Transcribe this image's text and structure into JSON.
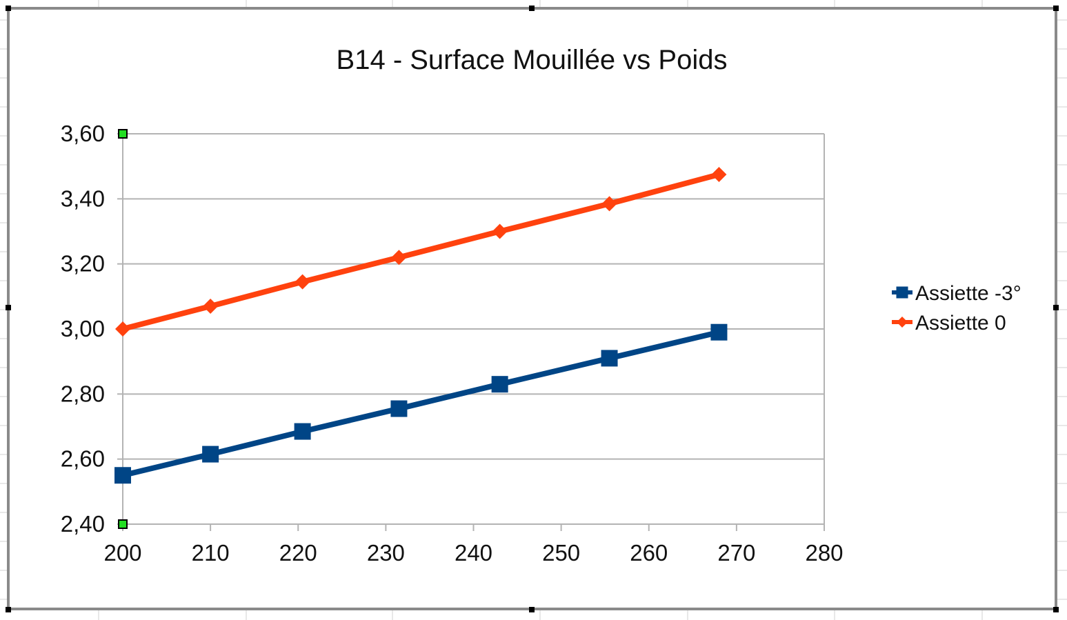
{
  "chart_data": {
    "type": "line",
    "title": "B14  - Surface Mouillée vs Poids",
    "xlabel": "",
    "ylabel": "",
    "xlim": [
      200,
      280
    ],
    "ylim": [
      2.4,
      3.6
    ],
    "x_ticks": [
      "200",
      "210",
      "220",
      "230",
      "240",
      "250",
      "260",
      "270",
      "280"
    ],
    "y_ticks": [
      "3,60",
      "3,40",
      "3,20",
      "3,00",
      "2,80",
      "2,60",
      "2,40"
    ],
    "grid": true,
    "legend_position": "right",
    "series": [
      {
        "name": "Assiette -3°",
        "color": "#004586",
        "marker": "square",
        "x": [
          200,
          210,
          220.5,
          231.5,
          243,
          255.5,
          268
        ],
        "y": [
          2.55,
          2.615,
          2.685,
          2.755,
          2.83,
          2.91,
          2.99
        ]
      },
      {
        "name": "Assiette 0",
        "color": "#ff420e",
        "marker": "diamond",
        "x": [
          200,
          210,
          220.5,
          231.5,
          243,
          255.5,
          268
        ],
        "y": [
          3.0,
          3.07,
          3.145,
          3.22,
          3.3,
          3.385,
          3.475
        ]
      }
    ]
  }
}
